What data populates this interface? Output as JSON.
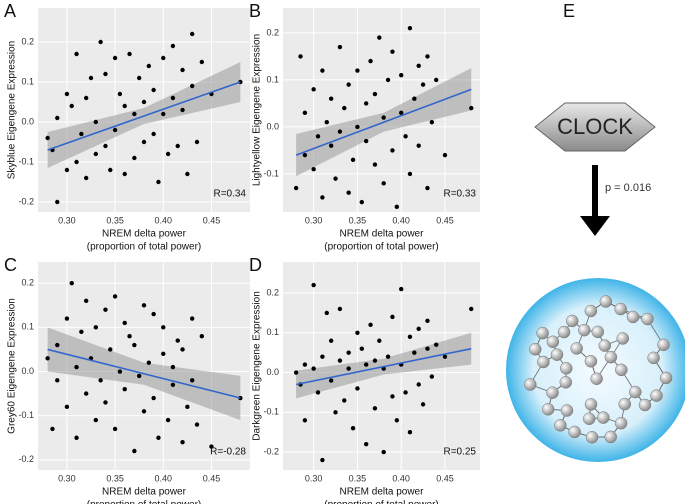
{
  "chart_data": [
    {
      "type": "scatter",
      "panel": "A",
      "ylabel": "Skyblue Eigengene Expression",
      "xlabel": [
        "NREM delta power",
        "(proportion of total power)"
      ],
      "annotation": "R=0.34",
      "color": "#000000",
      "grid": true,
      "xlim": [
        0.27,
        0.49
      ],
      "ylim": [
        -0.225,
        0.285
      ],
      "xticks": [
        {
          "value": 0.3,
          "label": "0.30"
        },
        0.35,
        {
          "value": 0.4,
          "label": "0.40"
        },
        0.45
      ],
      "yticks": [
        -0.2,
        -0.1,
        {
          "value": 0,
          "label": "0.0"
        },
        0.1,
        0.2
      ],
      "x": [
        0.28,
        0.285,
        0.29,
        0.29,
        0.3,
        0.3,
        0.305,
        0.31,
        0.31,
        0.315,
        0.32,
        0.32,
        0.325,
        0.33,
        0.33,
        0.335,
        0.34,
        0.34,
        0.345,
        0.35,
        0.35,
        0.355,
        0.36,
        0.36,
        0.365,
        0.37,
        0.37,
        0.375,
        0.38,
        0.38,
        0.385,
        0.39,
        0.39,
        0.395,
        0.4,
        0.4,
        0.405,
        0.41,
        0.41,
        0.415,
        0.42,
        0.42,
        0.425,
        0.43,
        0.43,
        0.435,
        0.44,
        0.45,
        0.48
      ],
      "values": [
        -0.04,
        -0.07,
        -0.2,
        0.01,
        -0.12,
        0.07,
        0.04,
        -0.1,
        0.17,
        -0.03,
        0.06,
        -0.14,
        0.11,
        -0.08,
        0.0,
        0.2,
        -0.06,
        0.12,
        -0.12,
        0.16,
        -0.02,
        0.07,
        -0.13,
        0.04,
        0.17,
        0.02,
        -0.09,
        0.11,
        -0.05,
        0.05,
        0.14,
        -0.03,
        0.08,
        -0.15,
        0.02,
        0.16,
        -0.08,
        0.06,
        0.19,
        -0.06,
        0.13,
        0.03,
        -0.13,
        0.09,
        0.22,
        -0.05,
        0.15,
        0.07,
        0.1
      ],
      "fit": {
        "color": "#3366cc",
        "x": [
          0.28,
          0.38,
          0.48
        ],
        "values": [
          -0.07,
          0.015,
          0.1
        ],
        "lower": [
          -0.115,
          -0.005,
          0.05
        ],
        "upper": [
          -0.025,
          0.035,
          0.15
        ]
      }
    },
    {
      "type": "scatter",
      "panel": "B",
      "ylabel": "Lightyellow Eigengene Expression",
      "xlabel": [
        "NREM delta power",
        "(proportion of total power)"
      ],
      "annotation": "R=0.33",
      "color": "#000000",
      "grid": true,
      "xlim": [
        0.265,
        0.49
      ],
      "ylim": [
        -0.181,
        0.253
      ],
      "xticks": [
        {
          "value": 0.3,
          "label": "0.30"
        },
        0.35,
        {
          "value": 0.4,
          "label": "0.40"
        },
        0.45
      ],
      "yticks": [
        -0.1,
        {
          "value": 0,
          "label": "0.0"
        },
        0.1,
        0.2
      ],
      "x": [
        0.28,
        0.285,
        0.29,
        0.29,
        0.3,
        0.3,
        0.305,
        0.31,
        0.31,
        0.315,
        0.32,
        0.32,
        0.325,
        0.33,
        0.33,
        0.335,
        0.34,
        0.34,
        0.345,
        0.35,
        0.35,
        0.355,
        0.36,
        0.36,
        0.365,
        0.37,
        0.37,
        0.375,
        0.38,
        0.38,
        0.385,
        0.39,
        0.39,
        0.395,
        0.4,
        0.4,
        0.405,
        0.41,
        0.41,
        0.415,
        0.42,
        0.42,
        0.425,
        0.43,
        0.43,
        0.435,
        0.44,
        0.45,
        0.48
      ],
      "values": [
        -0.13,
        0.15,
        -0.06,
        0.03,
        -0.09,
        0.08,
        -0.02,
        0.12,
        -0.15,
        0.01,
        -0.04,
        0.06,
        -0.11,
        0.17,
        -0.01,
        0.04,
        -0.14,
        0.09,
        -0.07,
        0.12,
        0.0,
        -0.16,
        0.05,
        -0.03,
        0.14,
        -0.08,
        0.07,
        0.19,
        -0.12,
        0.02,
        0.1,
        -0.05,
        0.16,
        -0.17,
        0.03,
        0.11,
        -0.02,
        0.21,
        -0.1,
        0.06,
        0.13,
        -0.04,
        0.09,
        -0.13,
        0.15,
        0.01,
        0.1,
        -0.06,
        0.04
      ],
      "fit": {
        "color": "#3366cc",
        "x": [
          0.28,
          0.38,
          0.48
        ],
        "values": [
          -0.06,
          0.01,
          0.08
        ],
        "lower": [
          -0.105,
          -0.01,
          0.035
        ],
        "upper": [
          -0.015,
          0.03,
          0.125
        ]
      }
    },
    {
      "type": "scatter",
      "panel": "C",
      "ylabel": "Grey60 Eigengene Expression",
      "xlabel": [
        "NREM delta power",
        "(proportion of total power)"
      ],
      "annotation": "R=-0.28",
      "color": "#000000",
      "grid": true,
      "xlim": [
        0.27,
        0.49
      ],
      "ylim": [
        -0.223,
        0.248
      ],
      "xticks": [
        {
          "value": 0.3,
          "label": "0.30"
        },
        0.35,
        {
          "value": 0.4,
          "label": "0.40"
        },
        0.45
      ],
      "yticks": [
        -0.2,
        -0.1,
        {
          "value": 0,
          "label": "0.0"
        },
        0.1,
        0.2
      ],
      "x": [
        0.28,
        0.285,
        0.29,
        0.29,
        0.3,
        0.3,
        0.305,
        0.31,
        0.31,
        0.315,
        0.32,
        0.32,
        0.325,
        0.33,
        0.33,
        0.335,
        0.34,
        0.34,
        0.345,
        0.35,
        0.35,
        0.355,
        0.36,
        0.36,
        0.365,
        0.37,
        0.37,
        0.375,
        0.38,
        0.38,
        0.385,
        0.39,
        0.39,
        0.395,
        0.4,
        0.4,
        0.405,
        0.41,
        0.41,
        0.415,
        0.42,
        0.42,
        0.425,
        0.43,
        0.43,
        0.435,
        0.44,
        0.45,
        0.48
      ],
      "values": [
        0.03,
        -0.13,
        0.06,
        -0.02,
        0.12,
        -0.08,
        0.2,
        0.01,
        -0.15,
        0.09,
        -0.05,
        0.16,
        0.03,
        -0.11,
        0.1,
        -0.02,
        0.14,
        -0.07,
        0.05,
        0.17,
        -0.13,
        0.0,
        0.11,
        -0.04,
        0.08,
        -0.18,
        0.06,
        -0.01,
        0.15,
        -0.09,
        0.02,
        0.13,
        -0.06,
        -0.15,
        0.04,
        0.1,
        -0.11,
        0.01,
        -0.03,
        0.07,
        -0.16,
        0.05,
        -0.08,
        0.12,
        -0.02,
        -0.12,
        0.08,
        -0.17,
        -0.06
      ],
      "fit": {
        "color": "#3366cc",
        "x": [
          0.28,
          0.38,
          0.48
        ],
        "values": [
          0.05,
          -0.005,
          -0.06
        ],
        "lower": [
          0.0,
          -0.03,
          -0.11
        ],
        "upper": [
          0.1,
          0.02,
          -0.01
        ]
      }
    },
    {
      "type": "scatter",
      "panel": "D",
      "ylabel": "Darkgreen Eigengene Expression",
      "xlabel": [
        "NREM delta power",
        "(proportion of total power)"
      ],
      "annotation": "R=0.25",
      "color": "#000000",
      "grid": true,
      "xlim": [
        0.265,
        0.49
      ],
      "ylim": [
        -0.245,
        0.278
      ],
      "xticks": [
        {
          "value": 0.3,
          "label": "0.30"
        },
        0.35,
        {
          "value": 0.4,
          "label": "0.40"
        },
        0.45
      ],
      "yticks": [
        -0.2,
        -0.1,
        {
          "value": 0,
          "label": "0.0"
        },
        0.1,
        0.2
      ],
      "x": [
        0.28,
        0.285,
        0.29,
        0.29,
        0.3,
        0.3,
        0.305,
        0.31,
        0.31,
        0.315,
        0.32,
        0.32,
        0.325,
        0.33,
        0.33,
        0.335,
        0.34,
        0.34,
        0.345,
        0.35,
        0.35,
        0.355,
        0.36,
        0.36,
        0.365,
        0.37,
        0.37,
        0.375,
        0.38,
        0.38,
        0.385,
        0.39,
        0.39,
        0.395,
        0.4,
        0.4,
        0.405,
        0.41,
        0.41,
        0.415,
        0.42,
        0.42,
        0.425,
        0.43,
        0.43,
        0.435,
        0.44,
        0.45,
        0.48
      ],
      "values": [
        0.0,
        -0.03,
        0.02,
        -0.12,
        0.01,
        0.22,
        -0.05,
        0.04,
        -0.22,
        0.15,
        -0.02,
        0.08,
        -0.1,
        0.03,
        0.16,
        -0.07,
        0.01,
        0.05,
        -0.14,
        0.1,
        -0.04,
        0.06,
        -0.18,
        0.02,
        0.12,
        -0.09,
        0.03,
        0.08,
        -0.2,
        0.01,
        0.04,
        -0.06,
        0.14,
        -0.12,
        0.21,
        0.02,
        -0.05,
        0.09,
        -0.15,
        0.05,
        0.11,
        -0.03,
        -0.08,
        0.06,
        0.13,
        -0.01,
        0.07,
        0.04,
        0.16
      ],
      "fit": {
        "color": "#3366cc",
        "x": [
          0.28,
          0.38,
          0.48
        ],
        "values": [
          -0.03,
          0.015,
          0.06
        ],
        "lower": [
          -0.065,
          -0.005,
          0.02
        ],
        "upper": [
          0.005,
          0.035,
          0.1
        ]
      }
    }
  ],
  "diagram": {
    "panel": "E",
    "gene": "CLOCK",
    "p_label": "p = 0.016"
  }
}
